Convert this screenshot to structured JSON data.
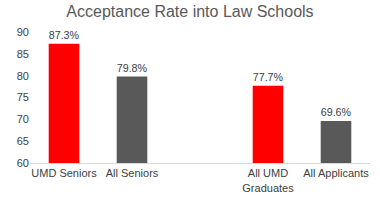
{
  "chart_data": {
    "type": "bar",
    "title": "Acceptance Rate into Law Schools",
    "categories": [
      "UMD Seniors",
      "All Seniors",
      null,
      "All UMD Graduates",
      "All Applicants"
    ],
    "values": [
      87.3,
      79.8,
      null,
      77.7,
      69.6
    ],
    "value_labels": [
      "87.3%",
      "79.8%",
      null,
      "77.7%",
      "69.6%"
    ],
    "colors": [
      "#ff0000",
      "#595959",
      null,
      "#ff0000",
      "#595959"
    ],
    "ylim": [
      60,
      90
    ],
    "yticks": [
      60,
      65,
      70,
      75,
      80,
      85,
      90
    ],
    "grid": false,
    "data_labels": true
  }
}
